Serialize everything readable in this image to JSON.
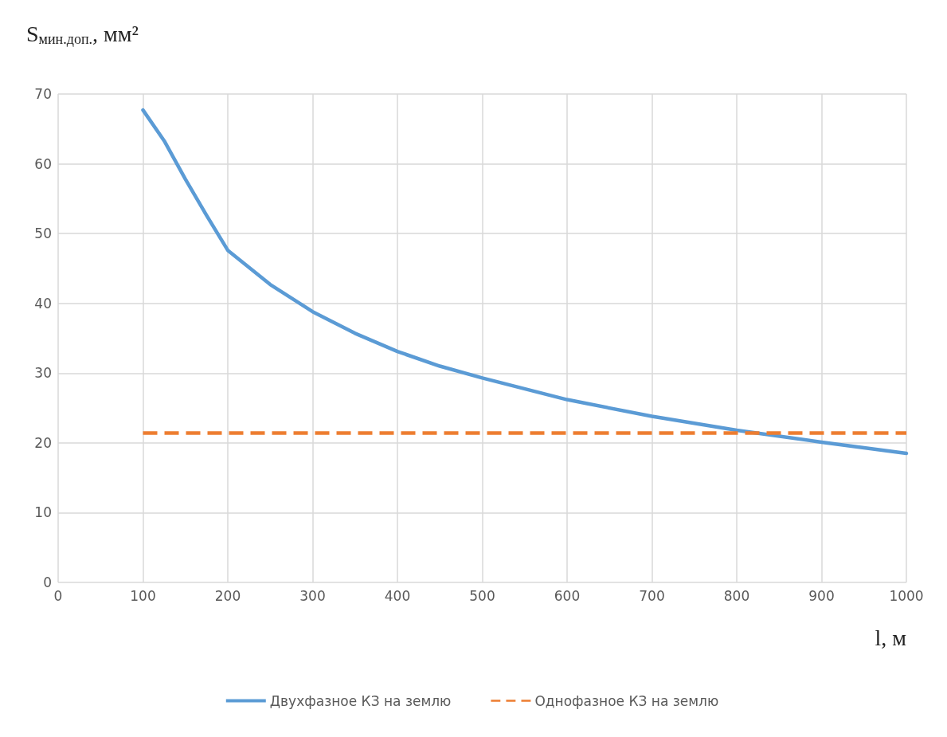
{
  "chart_data": {
    "type": "line",
    "xlabel": "l, м",
    "ylabel": "S$_{мин.доп.}$, мм²",
    "xlim": [
      0,
      1000
    ],
    "xticks": [
      0,
      100,
      200,
      300,
      400,
      500,
      600,
      700,
      800,
      900,
      1000
    ],
    "ylim": [
      0,
      70
    ],
    "yticks": [
      0,
      10,
      20,
      30,
      40,
      50,
      60,
      70
    ],
    "grid": true,
    "legend": "bottom",
    "marker": "none",
    "series": [
      {
        "name": "Двухфазное КЗ на землю",
        "color": "#5b9bd5",
        "line_style": "solid",
        "x": [
          100,
          125,
          150,
          175,
          200,
          250,
          300,
          350,
          400,
          450,
          500,
          600,
          700,
          800,
          900,
          1000
        ],
        "values": [
          67.7,
          63.3,
          57.8,
          52.6,
          47.6,
          42.7,
          38.8,
          35.7,
          33.1,
          31.0,
          29.3,
          26.2,
          23.8,
          21.8,
          20.1,
          18.5
        ]
      },
      {
        "name": "Однофазное КЗ на землю",
        "color": "#ed7d31",
        "line_style": "dashed",
        "x": [
          100,
          1000
        ],
        "values": [
          21.4,
          21.4
        ]
      }
    ]
  }
}
